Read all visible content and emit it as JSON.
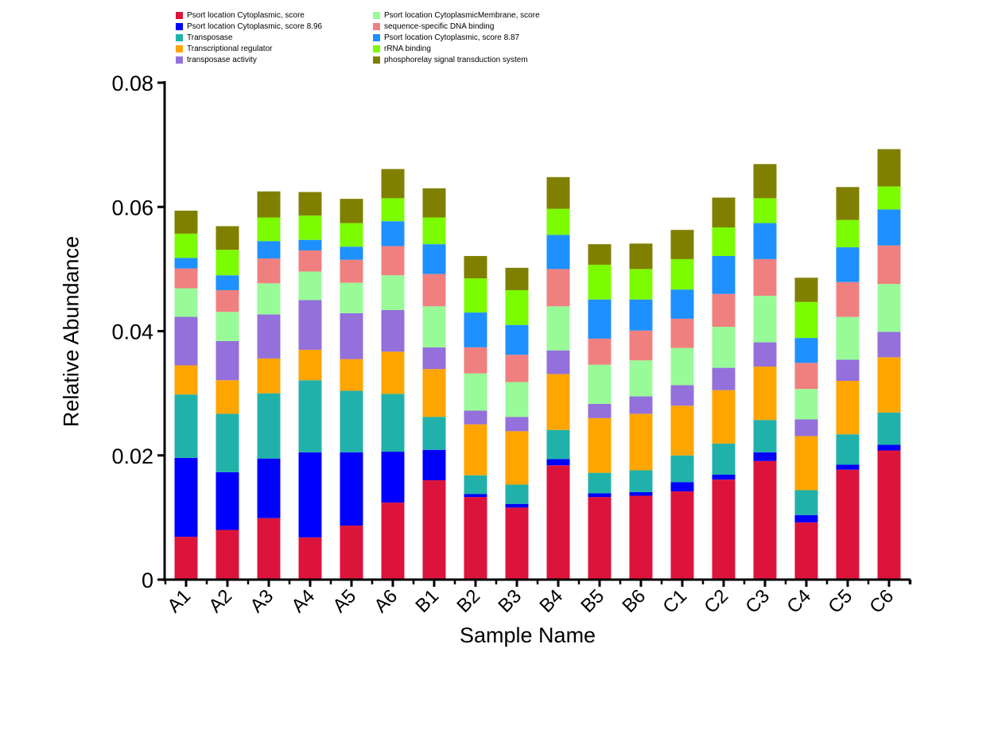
{
  "chart_data": {
    "type": "bar",
    "stacked": true,
    "xlabel": "Sample Name",
    "ylabel": "Relative Abundance",
    "ylim": [
      0,
      0.08
    ],
    "yticks": [
      "0",
      "0.02",
      "0.04",
      "0.06",
      "0.08"
    ],
    "categories": [
      "A1",
      "A2",
      "A3",
      "A4",
      "A5",
      "A6",
      "B1",
      "B2",
      "B3",
      "B4",
      "B5",
      "B6",
      "C1",
      "C2",
      "C3",
      "C4",
      "C5",
      "C6"
    ],
    "legend_position": "top",
    "series": [
      {
        "name": "Psort location Cytoplasmic, score",
        "color": "#DC143C",
        "values": [
          0.0069,
          0.008,
          0.0099,
          0.0068,
          0.0087,
          0.0124,
          0.016,
          0.0133,
          0.0116,
          0.0184,
          0.0133,
          0.0135,
          0.0142,
          0.0161,
          0.0191,
          0.0092,
          0.0177,
          0.0208
        ]
      },
      {
        "name": "Psort location Cytoplasmic, score 8.96",
        "color": "#0000FF",
        "values": [
          0.0127,
          0.0093,
          0.0096,
          0.0137,
          0.0118,
          0.0082,
          0.0049,
          0.0005,
          0.0006,
          0.001,
          0.0006,
          0.0006,
          0.0015,
          0.0008,
          0.0014,
          0.0012,
          0.0008,
          0.0009
        ]
      },
      {
        "name": "Transposase",
        "color": "#20B2AA",
        "values": [
          0.0102,
          0.0094,
          0.0105,
          0.0116,
          0.0099,
          0.0093,
          0.0053,
          0.003,
          0.0031,
          0.0047,
          0.0033,
          0.0035,
          0.0043,
          0.005,
          0.0052,
          0.004,
          0.0049,
          0.0052
        ]
      },
      {
        "name": "Transcriptional regulator",
        "color": "#FFA500",
        "values": [
          0.0047,
          0.0054,
          0.0056,
          0.0049,
          0.0051,
          0.0068,
          0.0077,
          0.0082,
          0.0086,
          0.009,
          0.0088,
          0.0091,
          0.008,
          0.0086,
          0.0086,
          0.0087,
          0.0086,
          0.0089
        ]
      },
      {
        "name": "transposase activity",
        "color": "#9370DB",
        "values": [
          0.0078,
          0.0063,
          0.0071,
          0.008,
          0.0074,
          0.0067,
          0.0035,
          0.0022,
          0.0023,
          0.0038,
          0.0023,
          0.0028,
          0.0033,
          0.0036,
          0.0039,
          0.0027,
          0.0034,
          0.0041
        ]
      },
      {
        "name": "Psort location CytoplasmicMembrane, score",
        "color": "#98FB98",
        "values": [
          0.0046,
          0.0047,
          0.005,
          0.0046,
          0.0049,
          0.0056,
          0.0066,
          0.006,
          0.0056,
          0.0071,
          0.0063,
          0.0058,
          0.006,
          0.0066,
          0.0075,
          0.0049,
          0.0069,
          0.0077
        ]
      },
      {
        "name": "sequence-specific DNA binding",
        "color": "#F08080",
        "values": [
          0.0032,
          0.0035,
          0.004,
          0.0034,
          0.0037,
          0.0047,
          0.0052,
          0.0042,
          0.0044,
          0.006,
          0.0042,
          0.0048,
          0.0047,
          0.0053,
          0.0059,
          0.0042,
          0.0056,
          0.0062
        ]
      },
      {
        "name": "Psort location Cytoplasmic, score 8.87",
        "color": "#1E90FF",
        "values": [
          0.0017,
          0.0024,
          0.0028,
          0.0017,
          0.0021,
          0.004,
          0.0048,
          0.0056,
          0.0048,
          0.0055,
          0.0063,
          0.005,
          0.0047,
          0.0061,
          0.0058,
          0.004,
          0.0056,
          0.0058
        ]
      },
      {
        "name": "rRNA binding",
        "color": "#7CFC00",
        "values": [
          0.0039,
          0.0041,
          0.0038,
          0.0039,
          0.0038,
          0.0037,
          0.0043,
          0.0055,
          0.0056,
          0.0042,
          0.0056,
          0.0049,
          0.0049,
          0.0046,
          0.004,
          0.0058,
          0.0044,
          0.0037
        ]
      },
      {
        "name": "phosphorelay signal transduction system",
        "color": "#808000",
        "values": [
          0.0037,
          0.0038,
          0.0042,
          0.0038,
          0.0039,
          0.0047,
          0.0047,
          0.0036,
          0.0036,
          0.0051,
          0.0033,
          0.0041,
          0.0047,
          0.0048,
          0.0055,
          0.0039,
          0.0053,
          0.006
        ]
      }
    ]
  }
}
